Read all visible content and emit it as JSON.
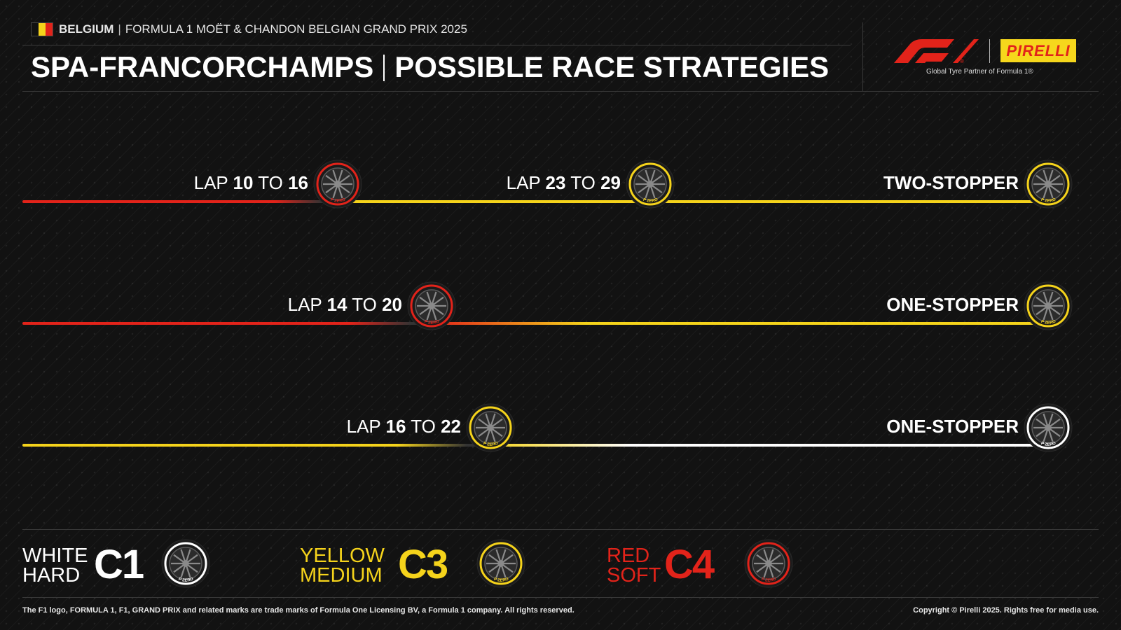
{
  "header": {
    "country": "BELGIUM",
    "event": "FORMULA 1 MOËT & CHANDON BELGIAN GRAND PRIX 2025",
    "circuit": "SPA-FRANCORCHAMPS",
    "heading": "POSSIBLE RACE STRATEGIES"
  },
  "brand": {
    "f1_logo": "F1",
    "pirelli_logo": "PIRELLI",
    "partner_text": "Global Tyre Partner of Formula 1®"
  },
  "colors": {
    "soft": "#e2231a",
    "medium": "#f5d31b",
    "hard": "#ffffff",
    "background": "#121212"
  },
  "strategies": [
    {
      "name": "TWO-STOPPER",
      "stints": [
        "soft",
        "medium",
        "medium"
      ],
      "stops": [
        {
          "prefix": "LAP",
          "from": "10",
          "to_word": "TO",
          "to": "16"
        },
        {
          "prefix": "LAP",
          "from": "23",
          "to_word": "TO",
          "to": "29"
        }
      ]
    },
    {
      "name": "ONE-STOPPER",
      "stints": [
        "soft",
        "medium"
      ],
      "stops": [
        {
          "prefix": "LAP",
          "from": "14",
          "to_word": "TO",
          "to": "20"
        }
      ]
    },
    {
      "name": "ONE-STOPPER",
      "stints": [
        "medium",
        "hard"
      ],
      "stops": [
        {
          "prefix": "LAP",
          "from": "16",
          "to_word": "TO",
          "to": "22"
        }
      ]
    }
  ],
  "legend": [
    {
      "color_word": "WHITE",
      "type_word": "HARD",
      "code": "C1",
      "compound": "hard"
    },
    {
      "color_word": "YELLOW",
      "type_word": "MEDIUM",
      "code": "C3",
      "compound": "medium"
    },
    {
      "color_word": "RED",
      "type_word": "SOFT",
      "code": "C4",
      "compound": "soft"
    }
  ],
  "tyre_icon": "tyre-icon",
  "tyre_sidewall_text": "P ZERO",
  "footer": {
    "disclaimer": "The F1 logo, FORMULA 1, F1, GRAND PRIX and related marks are trade marks of Formula One Licensing BV, a Formula 1 company. All rights reserved.",
    "copyright": "Copyright © Pirelli 2025. Rights free for media use."
  }
}
